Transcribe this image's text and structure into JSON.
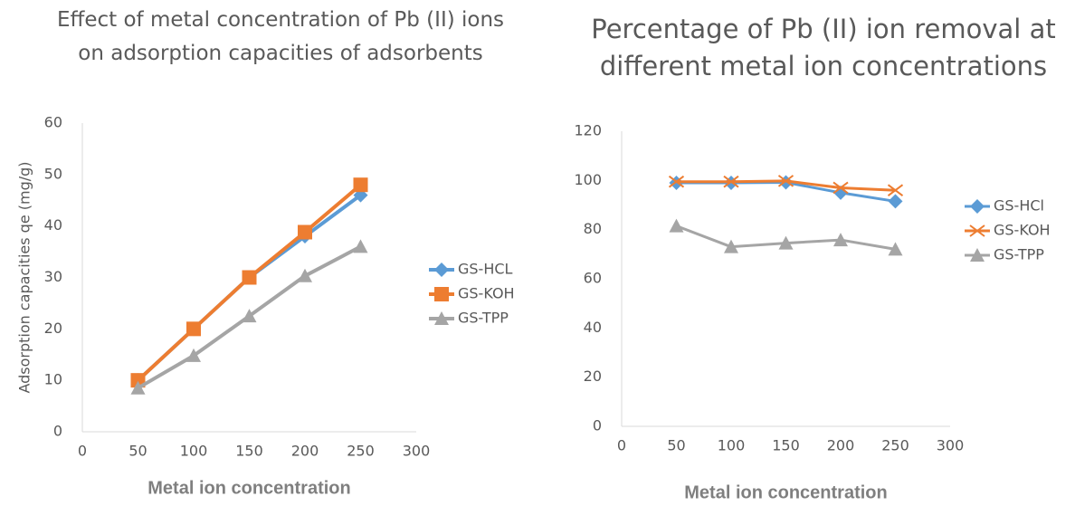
{
  "chart_data": [
    {
      "type": "line",
      "title": "Effect of metal concentration of Pb (II) ions on adsorption capacities of adsorbents",
      "x_label": "Metal ion concentration",
      "y_label": "Adsorption capacities qe (mg/g)",
      "x": [
        50,
        100,
        150,
        200,
        250
      ],
      "xlim": [
        0,
        300
      ],
      "xticks": [
        0,
        50,
        100,
        150,
        200,
        250,
        300
      ],
      "ylim": [
        0,
        60
      ],
      "yticks": [
        0,
        10,
        20,
        30,
        40,
        50,
        60
      ],
      "legend": "right",
      "series": [
        {
          "name": "GS-HCL",
          "color": "#5b9bd5",
          "marker": "diamond",
          "values": [
            10,
            20,
            30,
            38,
            46
          ]
        },
        {
          "name": "GS-KOH",
          "color": "#ed7d31",
          "marker": "square",
          "values": [
            10,
            20,
            30,
            38.8,
            48
          ]
        },
        {
          "name": "GS-TPP",
          "color": "#a5a5a5",
          "marker": "triangle",
          "values": [
            8.5,
            14.8,
            22.5,
            30.3,
            36
          ]
        }
      ]
    },
    {
      "type": "line",
      "title": "Percentage of Pb (II) ion removal at different metal ion concentrations",
      "x_label": "Metal ion concentration",
      "x": [
        50,
        100,
        150,
        200,
        250
      ],
      "xlim": [
        0,
        300
      ],
      "xticks": [
        0,
        50,
        100,
        150,
        200,
        250,
        300
      ],
      "ylim": [
        0,
        120
      ],
      "yticks": [
        0,
        20,
        40,
        60,
        80,
        100,
        120
      ],
      "legend": "right",
      "series": [
        {
          "name": "GS-HCl",
          "color": "#5b9bd5",
          "marker": "diamond",
          "values": [
            99,
            99,
            99.2,
            95,
            91.5
          ]
        },
        {
          "name": "GS-KOH",
          "color": "#ed7d31",
          "marker": "x",
          "values": [
            99.5,
            99.5,
            99.8,
            97,
            96
          ]
        },
        {
          "name": "GS-TPP",
          "color": "#a5a5a5",
          "marker": "triangle",
          "values": [
            81.5,
            73,
            74.5,
            75.8,
            72
          ]
        }
      ]
    }
  ]
}
